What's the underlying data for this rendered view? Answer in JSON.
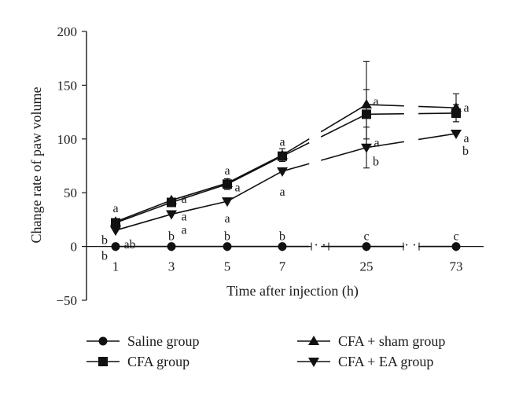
{
  "chart_data": {
    "type": "line",
    "xlabel": "Time after injection (h)",
    "ylabel": "Change rate of paw volume",
    "ylim": [
      -50,
      200
    ],
    "y_ticks": [
      "200",
      "150",
      "100",
      "50",
      "0",
      "−50"
    ],
    "x_categories": [
      "1",
      "3",
      "5",
      "7",
      "25",
      "73"
    ],
    "axis_break_marks": [
      "· ·",
      "· ·"
    ],
    "legend_placement": "bottom",
    "series": [
      {
        "name": "Saline group",
        "marker": "circle",
        "values": [
          0,
          0,
          0,
          0,
          0,
          0
        ],
        "labels": [
          "b",
          "b",
          "b",
          "b",
          "c",
          "c"
        ]
      },
      {
        "name": "CFA group",
        "marker": "square",
        "values": [
          22,
          41,
          58,
          84,
          123,
          124
        ],
        "error": [
          0,
          0,
          5,
          0,
          23,
          8
        ],
        "labels": [
          "",
          "a",
          "a",
          "a",
          "a",
          "a"
        ]
      },
      {
        "name": "CFA + sham group",
        "marker": "triangle-up",
        "values": [
          23,
          43,
          59,
          85,
          132,
          129
        ],
        "error": [
          0,
          0,
          0,
          6,
          40,
          13
        ],
        "labels": [
          "a",
          "a",
          "a",
          "a",
          "a",
          "a"
        ]
      },
      {
        "name": "CFA + EA group",
        "marker": "triangle-down",
        "values": [
          15,
          30,
          42,
          70,
          92,
          105
        ],
        "error": [
          0,
          0,
          0,
          0,
          19,
          0
        ],
        "labels": [
          "ab",
          "a",
          "a",
          "a",
          "b",
          "b"
        ]
      }
    ],
    "extra_labels": [
      {
        "category": "1",
        "text": "b",
        "value": 6
      }
    ]
  }
}
